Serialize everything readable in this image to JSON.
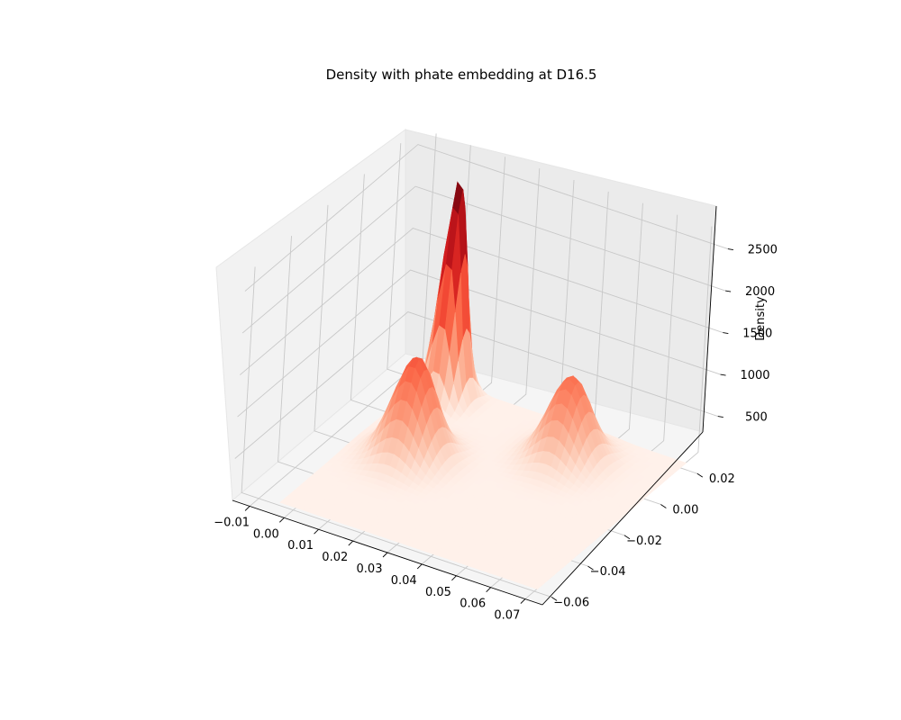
{
  "chart_data": {
    "type": "surface3d",
    "title": "Density with phate embedding at D16.5",
    "xlabel": "",
    "ylabel": "",
    "zlabel": "Density",
    "colormap": "Reds",
    "x_ticks": [
      "−0.01",
      "0.00",
      "0.01",
      "0.02",
      "0.03",
      "0.04",
      "0.05",
      "0.06",
      "0.07"
    ],
    "y_ticks": [
      "−0.06",
      "−0.04",
      "−0.02",
      "0.00",
      "0.02"
    ],
    "z_ticks": [
      "500",
      "1000",
      "1500",
      "2000",
      "2500"
    ],
    "xlim": [
      -0.015,
      0.075
    ],
    "ylim": [
      -0.065,
      0.03
    ],
    "zlim": [
      0,
      2700
    ],
    "peaks": [
      {
        "x": 0.005,
        "y": 0.015,
        "density": 2650
      },
      {
        "x": 0.012,
        "y": -0.018,
        "density": 1200
      },
      {
        "x": 0.045,
        "y": 0.005,
        "density": 1000
      }
    ]
  }
}
